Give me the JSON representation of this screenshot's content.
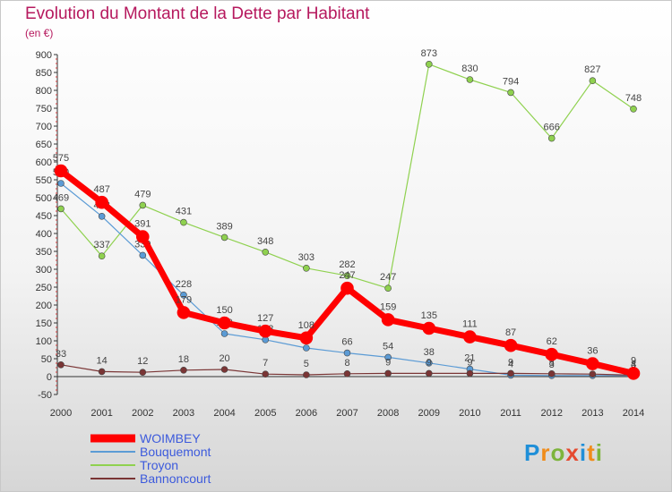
{
  "chart_data": {
    "type": "line",
    "title": "Evolution du Montant de la Dette par Habitant",
    "subtitle": "(en €)",
    "x": [
      "2000",
      "2001",
      "2002",
      "2003",
      "2004",
      "2005",
      "2006",
      "2007",
      "2008",
      "2009",
      "2010",
      "2011",
      "2012",
      "2013",
      "2014"
    ],
    "ylim": [
      -50,
      900
    ],
    "yticks": [
      -50,
      0,
      50,
      100,
      150,
      200,
      250,
      300,
      350,
      400,
      450,
      500,
      550,
      600,
      650,
      700,
      750,
      800,
      850,
      900
    ],
    "grid": false,
    "legend_position": "bottom-left",
    "series": [
      {
        "name": "WOIMBEY",
        "color": "#ff0000",
        "values": [
          575,
          487,
          391,
          179,
          150,
          127,
          108,
          247,
          159,
          135,
          111,
          87,
          62,
          36,
          9
        ]
      },
      {
        "name": "Bouquemont",
        "color": "#5b9bd5",
        "values": [
          540,
          448,
          339,
          228,
          120,
          103,
          80,
          66,
          54,
          38,
          21,
          4,
          3,
          3,
          3
        ]
      },
      {
        "name": "Troyon",
        "color": "#8fd14f",
        "values": [
          469,
          337,
          479,
          431,
          389,
          348,
          303,
          282,
          247,
          873,
          830,
          794,
          666,
          827,
          748
        ]
      },
      {
        "name": "Bannoncourt",
        "color": "#7a3535",
        "values": [
          33,
          14,
          12,
          18,
          20,
          7,
          5,
          8,
          9,
          9,
          9,
          9,
          8,
          7,
          4
        ]
      }
    ]
  },
  "logo": {
    "letters": [
      "P",
      "r",
      "o",
      "x",
      "i",
      "t",
      "i"
    ]
  }
}
